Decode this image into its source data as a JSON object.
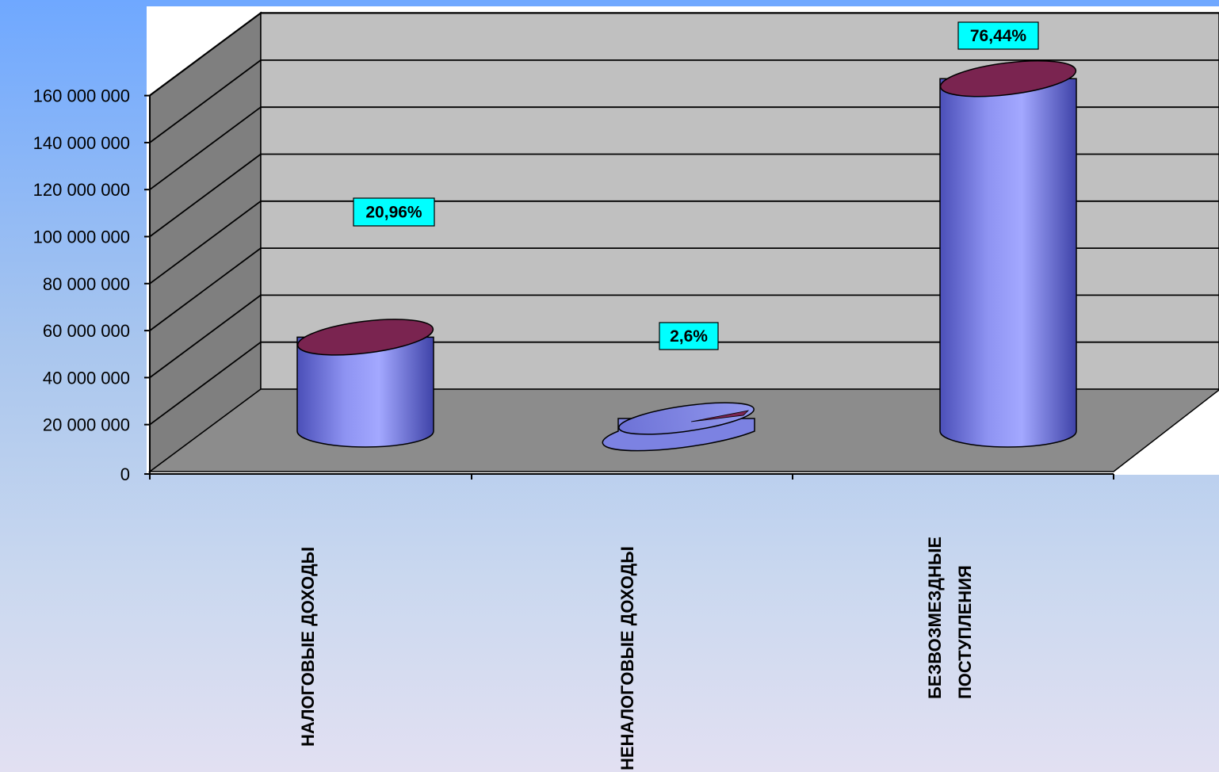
{
  "chart_data": {
    "type": "bar",
    "style": "3d-cylinder",
    "categories": [
      "НАЛОГОВЫЕ ДОХОДЫ",
      "НЕНАЛОГОВЫЕ ДОХОДЫ",
      "БЕЗВОЗМЕЗДНЫЕ ПОСТУПЛЕНИЯ"
    ],
    "category_label_lines": [
      [
        "НАЛОГОВЫЕ ДОХОДЫ"
      ],
      [
        "НЕНАЛОГОВЫЕ ДОХОДЫ"
      ],
      [
        "БЕЗВОЗМЕЗДНЫЕ",
        "ПОСТУПЛЕНИЯ"
      ]
    ],
    "values": [
      40000000,
      3000000,
      150000000
    ],
    "data_labels": [
      "20,96%",
      "2,6%",
      "76,44%"
    ],
    "ylim": [
      0,
      160000000
    ],
    "yticks": [
      0,
      20000000,
      40000000,
      60000000,
      80000000,
      100000000,
      120000000,
      140000000,
      160000000
    ],
    "ytick_labels": [
      "0",
      "20 000 000",
      "40 000 000",
      "60 000 000",
      "80 000 000",
      "100 000 000",
      "120 000 000",
      "140 000 000",
      "160 000 000"
    ],
    "title": "",
    "xlabel": "",
    "ylabel": "",
    "grid": true,
    "legend": "none",
    "colors": {
      "cylinder_body": "#9aa0ff",
      "cylinder_top": "#7a2450",
      "back_wall": "#c0c0c0",
      "side_wall": "#7f7f7f",
      "floor": "#8c8c8c",
      "label_box": "#00ffff"
    }
  }
}
